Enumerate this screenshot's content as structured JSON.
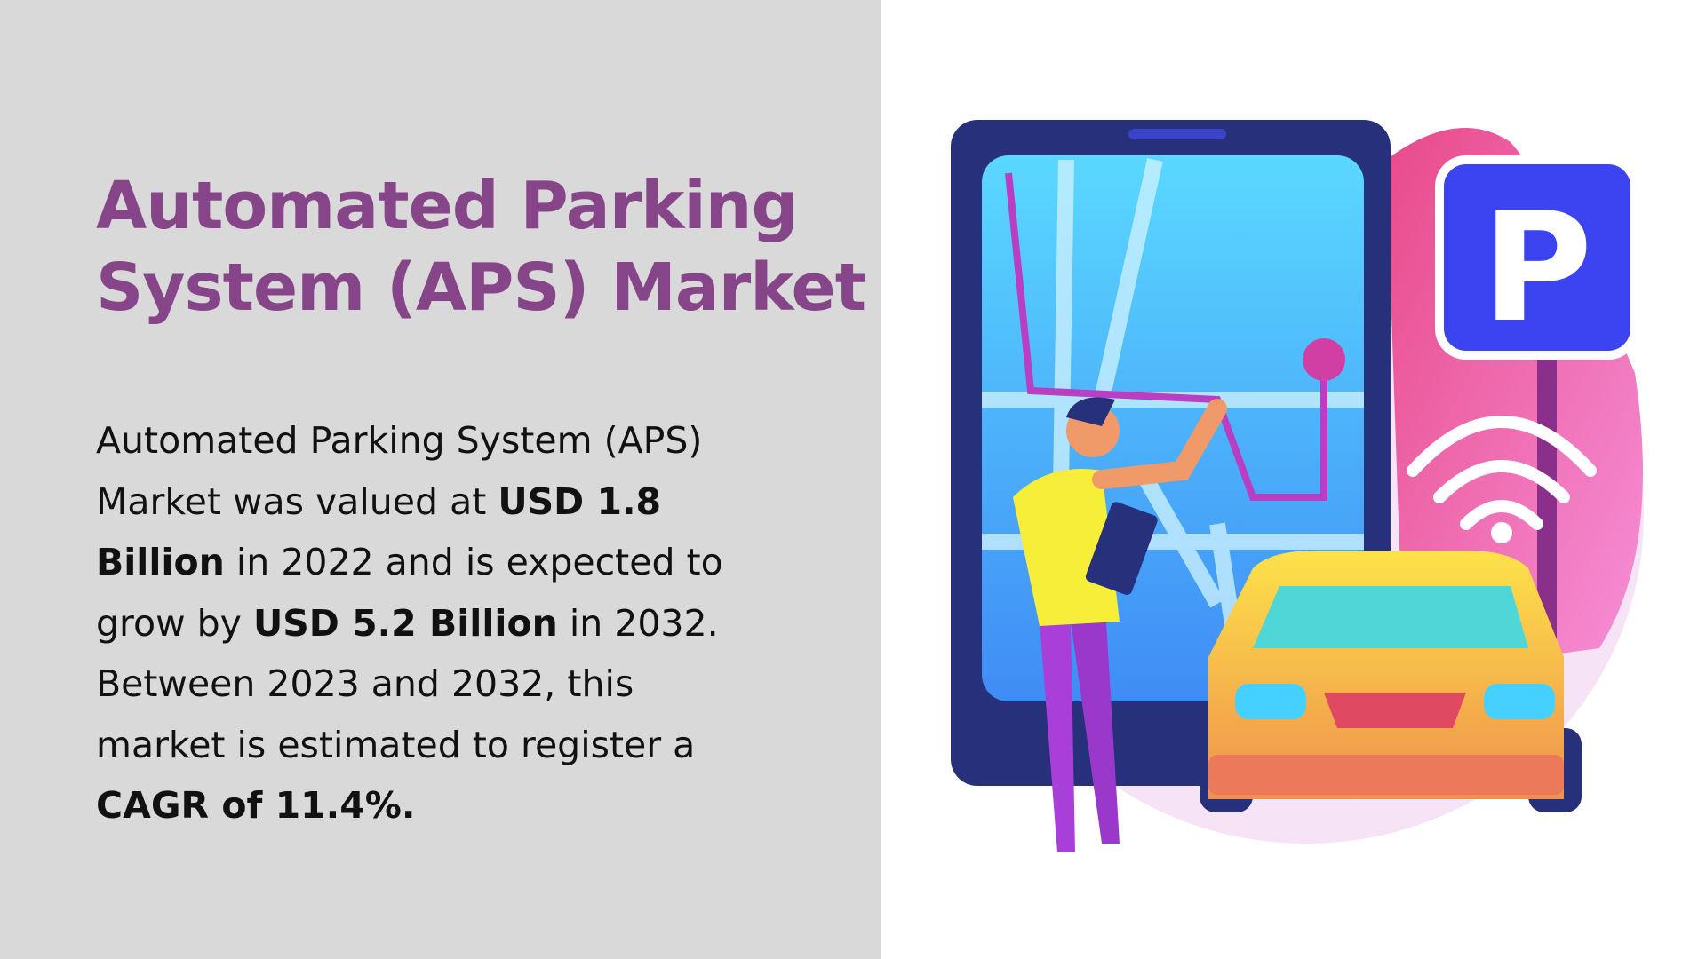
{
  "title": {
    "line1": "Automated Parking",
    "line2": "System (APS) Market"
  },
  "body": {
    "l1": "Automated Parking System (APS)",
    "l2a": "Market was valued at ",
    "l2b": "USD 1.8",
    "l3a": "Billion",
    "l3b": " in 2022 and is expected to",
    "l4a": "grow by ",
    "l4b": "USD 5.2 Billion",
    "l4c": " in 2032.",
    "l5": "Between 2023 and 2032, this",
    "l6": "market is estimated to register a",
    "l7": "CAGR of 11.4%."
  },
  "illustration": {
    "sign_letter": "P",
    "icons": [
      "smartphone-map",
      "parking-sign",
      "wifi-signal",
      "car",
      "person-with-clipboard"
    ]
  },
  "colors": {
    "panel": "#d9d9d9",
    "title": "#874589",
    "text": "#111111",
    "sign": "#3b44f0"
  }
}
